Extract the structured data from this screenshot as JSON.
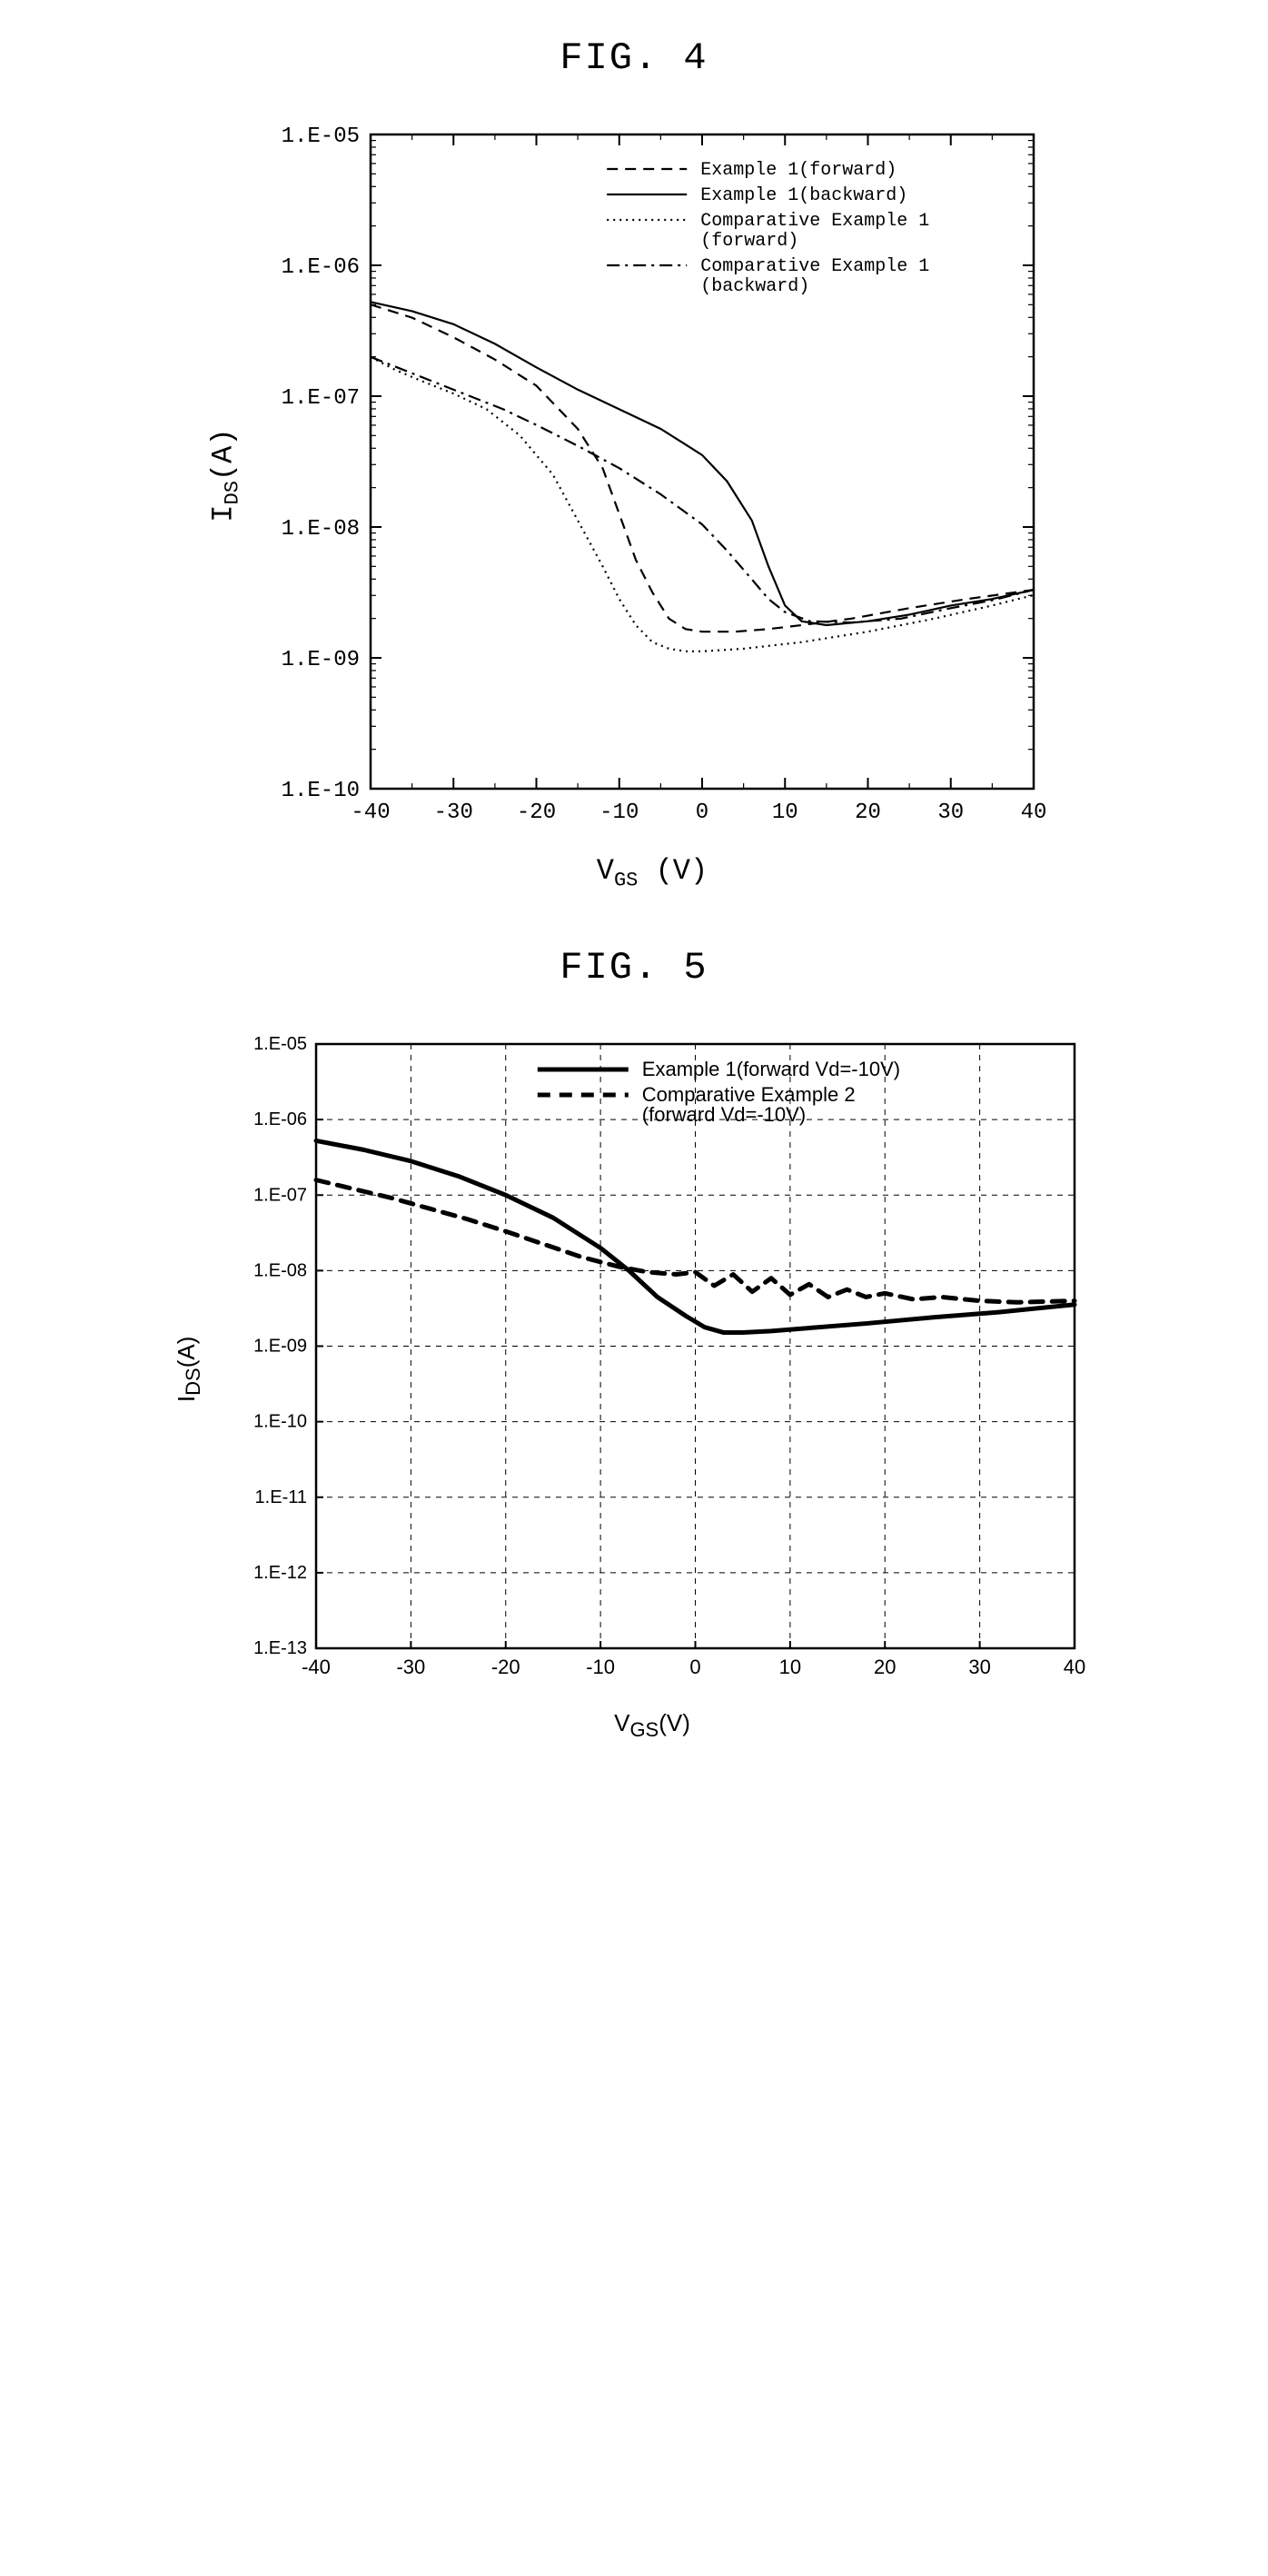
{
  "fig4": {
    "title": "FIG. 4",
    "ylabel_main": "I",
    "ylabel_sub": "DS",
    "ylabel_unit": "(A)",
    "xlabel_main": "V",
    "xlabel_sub": "GS",
    "xlabel_unit": " (V)",
    "xlim": [
      -40,
      40
    ],
    "ylim_exp": [
      -10,
      -5
    ],
    "xtick_step": 10,
    "ytick_labels": [
      "1.E-10",
      "1.E-09",
      "1.E-08",
      "1.E-07",
      "1.E-06",
      "1.E-05"
    ],
    "xtick_labels": [
      "-40",
      "-30",
      "-20",
      "-10",
      "0",
      "10",
      "20",
      "30",
      "40"
    ],
    "plot_bg": "#ffffff",
    "axis_color": "#000000",
    "legend": [
      {
        "label": "Example 1(forward)",
        "dash": "12 8",
        "width": 2.2
      },
      {
        "label": "Example 1(backward)",
        "dash": "",
        "width": 2.2
      },
      {
        "label": "Comparative Example 1\n(forward)",
        "dash": "2 5",
        "width": 2.2
      },
      {
        "label": "Comparative Example 1\n(backward)",
        "dash": "14 6 3 6",
        "width": 2.2
      }
    ],
    "series": {
      "ex1_fwd": {
        "dash": "12 8",
        "width": 2.2,
        "pts": [
          [
            -40,
            -6.3
          ],
          [
            -35,
            -6.4
          ],
          [
            -30,
            -6.55
          ],
          [
            -25,
            -6.72
          ],
          [
            -20,
            -6.92
          ],
          [
            -15,
            -7.25
          ],
          [
            -12,
            -7.55
          ],
          [
            -10,
            -7.9
          ],
          [
            -8,
            -8.25
          ],
          [
            -6,
            -8.5
          ],
          [
            -4,
            -8.7
          ],
          [
            -2,
            -8.78
          ],
          [
            0,
            -8.8
          ],
          [
            4,
            -8.8
          ],
          [
            8,
            -8.78
          ],
          [
            12,
            -8.75
          ],
          [
            18,
            -8.7
          ],
          [
            25,
            -8.62
          ],
          [
            32,
            -8.55
          ],
          [
            40,
            -8.48
          ]
        ]
      },
      "ex1_bwd": {
        "dash": "",
        "width": 2.2,
        "pts": [
          [
            -40,
            -6.28
          ],
          [
            -35,
            -6.35
          ],
          [
            -30,
            -6.45
          ],
          [
            -25,
            -6.6
          ],
          [
            -20,
            -6.78
          ],
          [
            -15,
            -6.95
          ],
          [
            -10,
            -7.1
          ],
          [
            -5,
            -7.25
          ],
          [
            0,
            -7.45
          ],
          [
            3,
            -7.65
          ],
          [
            6,
            -7.95
          ],
          [
            8,
            -8.3
          ],
          [
            10,
            -8.6
          ],
          [
            12,
            -8.72
          ],
          [
            15,
            -8.75
          ],
          [
            20,
            -8.72
          ],
          [
            25,
            -8.67
          ],
          [
            30,
            -8.6
          ],
          [
            35,
            -8.55
          ],
          [
            40,
            -8.48
          ]
        ]
      },
      "comp_fwd": {
        "dash": "2 5",
        "width": 2.2,
        "pts": [
          [
            -40,
            -6.7
          ],
          [
            -37,
            -6.8
          ],
          [
            -34,
            -6.88
          ],
          [
            -30,
            -6.98
          ],
          [
            -26,
            -7.1
          ],
          [
            -22,
            -7.3
          ],
          [
            -18,
            -7.6
          ],
          [
            -15,
            -7.95
          ],
          [
            -12,
            -8.3
          ],
          [
            -10,
            -8.55
          ],
          [
            -8,
            -8.75
          ],
          [
            -6,
            -8.88
          ],
          [
            -4,
            -8.93
          ],
          [
            -2,
            -8.95
          ],
          [
            0,
            -8.95
          ],
          [
            5,
            -8.93
          ],
          [
            12,
            -8.88
          ],
          [
            20,
            -8.8
          ],
          [
            28,
            -8.7
          ],
          [
            35,
            -8.6
          ],
          [
            40,
            -8.52
          ]
        ]
      },
      "comp_bwd": {
        "dash": "14 6 3 6",
        "width": 2.2,
        "pts": [
          [
            -40,
            -6.7
          ],
          [
            -36,
            -6.8
          ],
          [
            -32,
            -6.9
          ],
          [
            -28,
            -7.0
          ],
          [
            -24,
            -7.1
          ],
          [
            -20,
            -7.22
          ],
          [
            -15,
            -7.38
          ],
          [
            -10,
            -7.55
          ],
          [
            -5,
            -7.75
          ],
          [
            0,
            -7.98
          ],
          [
            3,
            -8.18
          ],
          [
            6,
            -8.4
          ],
          [
            8,
            -8.55
          ],
          [
            10,
            -8.65
          ],
          [
            13,
            -8.72
          ],
          [
            18,
            -8.73
          ],
          [
            24,
            -8.7
          ],
          [
            30,
            -8.62
          ],
          [
            35,
            -8.56
          ],
          [
            40,
            -8.48
          ]
        ]
      }
    }
  },
  "fig5": {
    "title": "FIG. 5",
    "ylabel_main": "I",
    "ylabel_sub": "DS",
    "ylabel_unit": "(A)",
    "xlabel_main": "V",
    "xlabel_sub": "GS",
    "xlabel_unit": "(V)",
    "xlim": [
      -40,
      40
    ],
    "ylim_exp": [
      -13,
      -5
    ],
    "xtick_step": 10,
    "ytick_labels": [
      "1.E-13",
      "1.E-12",
      "1.E-11",
      "1.E-10",
      "1.E-09",
      "1.E-08",
      "1.E-07",
      "1.E-06",
      "1.E-05"
    ],
    "xtick_labels": [
      "-40",
      "-30",
      "-20",
      "-10",
      "0",
      "10",
      "20",
      "30",
      "40"
    ],
    "plot_bg": "#ffffff",
    "axis_color": "#000000",
    "grid_color": "#000000",
    "grid_dash": "6 6",
    "legend": [
      {
        "label": "Example 1(forward Vd=-10V)",
        "dash": "",
        "width": 5
      },
      {
        "label": "Comparative Example 2\n(forward Vd=-10V)",
        "dash": "14 10",
        "width": 5
      }
    ],
    "series": {
      "ex1": {
        "dash": "",
        "width": 5,
        "pts": [
          [
            -40,
            -6.28
          ],
          [
            -35,
            -6.4
          ],
          [
            -30,
            -6.55
          ],
          [
            -25,
            -6.75
          ],
          [
            -20,
            -7.0
          ],
          [
            -15,
            -7.3
          ],
          [
            -10,
            -7.7
          ],
          [
            -7,
            -8.0
          ],
          [
            -4,
            -8.35
          ],
          [
            -1,
            -8.6
          ],
          [
            1,
            -8.75
          ],
          [
            3,
            -8.82
          ],
          [
            5,
            -8.82
          ],
          [
            8,
            -8.8
          ],
          [
            12,
            -8.76
          ],
          [
            18,
            -8.7
          ],
          [
            25,
            -8.62
          ],
          [
            32,
            -8.55
          ],
          [
            40,
            -8.45
          ]
        ]
      },
      "comp2": {
        "dash": "14 10",
        "width": 5,
        "pts": [
          [
            -40,
            -6.8
          ],
          [
            -36,
            -6.92
          ],
          [
            -32,
            -7.04
          ],
          [
            -28,
            -7.18
          ],
          [
            -24,
            -7.32
          ],
          [
            -20,
            -7.48
          ],
          [
            -16,
            -7.65
          ],
          [
            -12,
            -7.82
          ],
          [
            -8,
            -7.95
          ],
          [
            -5,
            -8.02
          ],
          [
            -2,
            -8.05
          ],
          [
            0,
            -8.02
          ],
          [
            2,
            -8.2
          ],
          [
            4,
            -8.05
          ],
          [
            6,
            -8.28
          ],
          [
            8,
            -8.1
          ],
          [
            10,
            -8.32
          ],
          [
            12,
            -8.18
          ],
          [
            14,
            -8.35
          ],
          [
            16,
            -8.25
          ],
          [
            18,
            -8.35
          ],
          [
            20,
            -8.3
          ],
          [
            23,
            -8.38
          ],
          [
            26,
            -8.35
          ],
          [
            30,
            -8.4
          ],
          [
            34,
            -8.42
          ],
          [
            40,
            -8.4
          ]
        ]
      }
    }
  }
}
